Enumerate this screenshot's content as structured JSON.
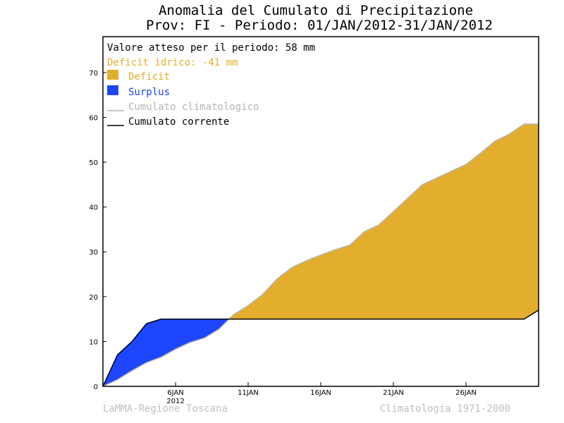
{
  "header": {
    "title_line1": "Anomalia del Cumulato di Precipitazione",
    "title_line2": "Prov: FI - Periodo: 01/JAN/2012-31/JAN/2012"
  },
  "legend": {
    "expected": "Valore atteso per il periodo: 58 mm",
    "deficit_text": "Deficit idrico: -41 mm",
    "deficit": "Deficit",
    "surplus": "Surplus",
    "climatological": "Cumulato climatologico",
    "current": "Cumulato corrente"
  },
  "footer": {
    "left": "LaMMA-Regione Toscana",
    "right": "Climatologia 1971-2000"
  },
  "colors": {
    "deficit": "#e3ae2e",
    "surplus": "#1e46ff",
    "deficit_text": "#e3ae2e",
    "surplus_text": "#1e46ff",
    "climatological": "#b4b4b4",
    "current": "#000000"
  },
  "chart_data": {
    "type": "area",
    "x_unit": "day of January 2012",
    "xlim": [
      1,
      31
    ],
    "ylim": [
      0,
      78
    ],
    "yticks": [
      0,
      10,
      20,
      30,
      40,
      50,
      60,
      70
    ],
    "xticks": [
      {
        "day": 6,
        "label": "6JAN",
        "sublabel": "2012"
      },
      {
        "day": 11,
        "label": "11JAN",
        "sublabel": ""
      },
      {
        "day": 16,
        "label": "16JAN",
        "sublabel": ""
      },
      {
        "day": 21,
        "label": "21JAN",
        "sublabel": ""
      },
      {
        "day": 26,
        "label": "26JAN",
        "sublabel": ""
      }
    ],
    "series": [
      {
        "name": "Cumulato climatologico",
        "x": [
          1,
          2,
          3,
          4,
          5,
          6,
          7,
          8,
          9,
          10,
          11,
          12,
          13,
          14,
          15,
          16,
          17,
          18,
          19,
          20,
          21,
          22,
          23,
          24,
          25,
          26,
          27,
          28,
          29,
          30,
          31
        ],
        "values": [
          0,
          1.5,
          3.5,
          5.3,
          6.5,
          8.3,
          9.8,
          10.8,
          12.8,
          16,
          18,
          20.5,
          24,
          26.5,
          28,
          29.3,
          30.5,
          31.5,
          34.5,
          36,
          39,
          42,
          45,
          46.5,
          48,
          49.5,
          52,
          54.7,
          56.3,
          58.5,
          58.5
        ]
      },
      {
        "name": "Cumulato corrente",
        "x": [
          1,
          2,
          3,
          4,
          5,
          6,
          7,
          8,
          9,
          10,
          11,
          12,
          13,
          14,
          15,
          16,
          17,
          18,
          19,
          20,
          21,
          22,
          23,
          24,
          25,
          26,
          27,
          28,
          29,
          30,
          31
        ],
        "values": [
          0,
          7,
          10,
          14,
          15,
          15,
          15,
          15,
          15,
          15,
          15,
          15,
          15,
          15,
          15,
          15,
          15,
          15,
          15,
          15,
          15,
          15,
          15,
          15,
          15,
          15,
          15,
          15,
          15,
          15,
          17
        ]
      }
    ]
  }
}
